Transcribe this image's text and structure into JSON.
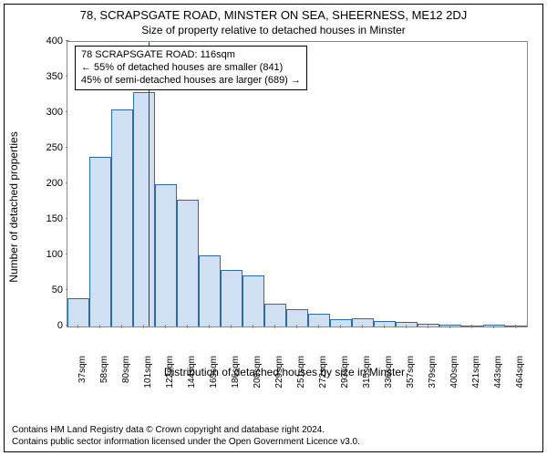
{
  "title_line1": "78, SCRAPSGATE ROAD, MINSTER ON SEA, SHEERNESS, ME12 2DJ",
  "title_line2": "Size of property relative to detached houses in Minster",
  "y_axis_label": "Number of detached properties",
  "x_axis_label": "Distribution of detached houses by size in Minster",
  "chart": {
    "type": "histogram",
    "ylim": [
      0,
      400
    ],
    "yticks": [
      0,
      50,
      100,
      150,
      200,
      250,
      300,
      350,
      400
    ],
    "bar_fill": "#cfe0f3",
    "bar_stroke": "#2d68b2",
    "reference_line_color": "#cc0000",
    "reference_line_x_index": 4,
    "background_color": "#ffffff",
    "axis_color": "#888888",
    "x_tick_labels": [
      "37sqm",
      "58sqm",
      "80sqm",
      "101sqm",
      "122sqm",
      "144sqm",
      "165sqm",
      "186sqm",
      "208sqm",
      "229sqm",
      "251sqm",
      "272sqm",
      "293sqm",
      "315sqm",
      "336sqm",
      "357sqm",
      "379sqm",
      "400sqm",
      "421sqm",
      "443sqm",
      "464sqm"
    ],
    "values": [
      40,
      238,
      305,
      330,
      200,
      178,
      100,
      80,
      72,
      32,
      25,
      18,
      10,
      12,
      8,
      6,
      4,
      3,
      0,
      2,
      1
    ]
  },
  "annotation": {
    "line1": "78 SCRAPSGATE ROAD: 116sqm",
    "line2": "← 55% of detached houses are smaller (841)",
    "line3": "45% of semi-detached houses are larger (689) →"
  },
  "footer_line1": "Contains HM Land Registry data © Crown copyright and database right 2024.",
  "footer_line2": "Contains public sector information licensed under the Open Government Licence v3.0."
}
